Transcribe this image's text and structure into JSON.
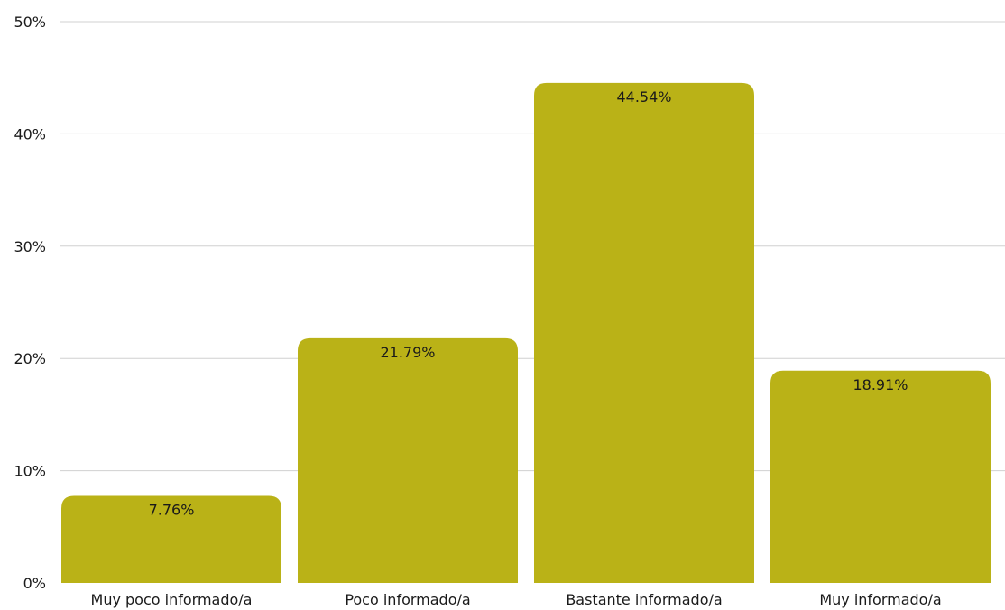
{
  "chart_data": {
    "type": "bar",
    "title": "",
    "xlabel": "",
    "ylabel": "",
    "categories": [
      "Muy poco informado/a",
      "Poco informado/a",
      "Bastante informado/a",
      "Muy informado/a"
    ],
    "values": [
      7.76,
      21.79,
      44.54,
      18.91
    ],
    "data_labels": [
      "7.76%",
      "21.79%",
      "44.54%",
      "18.91%"
    ],
    "ylim": [
      0,
      50
    ],
    "yticks": [
      0,
      10,
      20,
      30,
      40,
      50
    ],
    "ytick_labels": [
      "0%",
      "10%",
      "20%",
      "30%",
      "40%",
      "50%"
    ],
    "grid": true,
    "legend": "none",
    "colors": {
      "bar": "#bab217",
      "grid": "#d0d0d0",
      "text": "#1a1a1a"
    }
  }
}
